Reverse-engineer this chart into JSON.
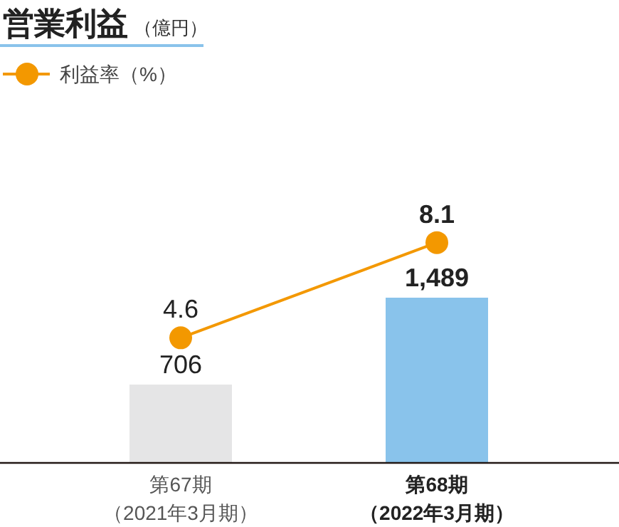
{
  "chart_data": {
    "type": "bar",
    "title": "営業利益",
    "subtitle": "（億円）",
    "categories": [
      "第67期（2021年3月期）",
      "第68期（2022年3月期）"
    ],
    "series": [
      {
        "colors": [
          "#e5e5e6",
          "#89c3eb"
        ],
        "values": [
          706,
          1489
        ],
        "value_labels": [
          "706",
          "1,489"
        ]
      },
      {
        "type": "line",
        "name": "利益率（%）",
        "color": "#f39800",
        "axis": "y2",
        "marker": "circle",
        "values": [
          4.6,
          8.1
        ],
        "value_labels": [
          "4.6",
          "8.1"
        ]
      }
    ],
    "legend": "top left"
  }
}
